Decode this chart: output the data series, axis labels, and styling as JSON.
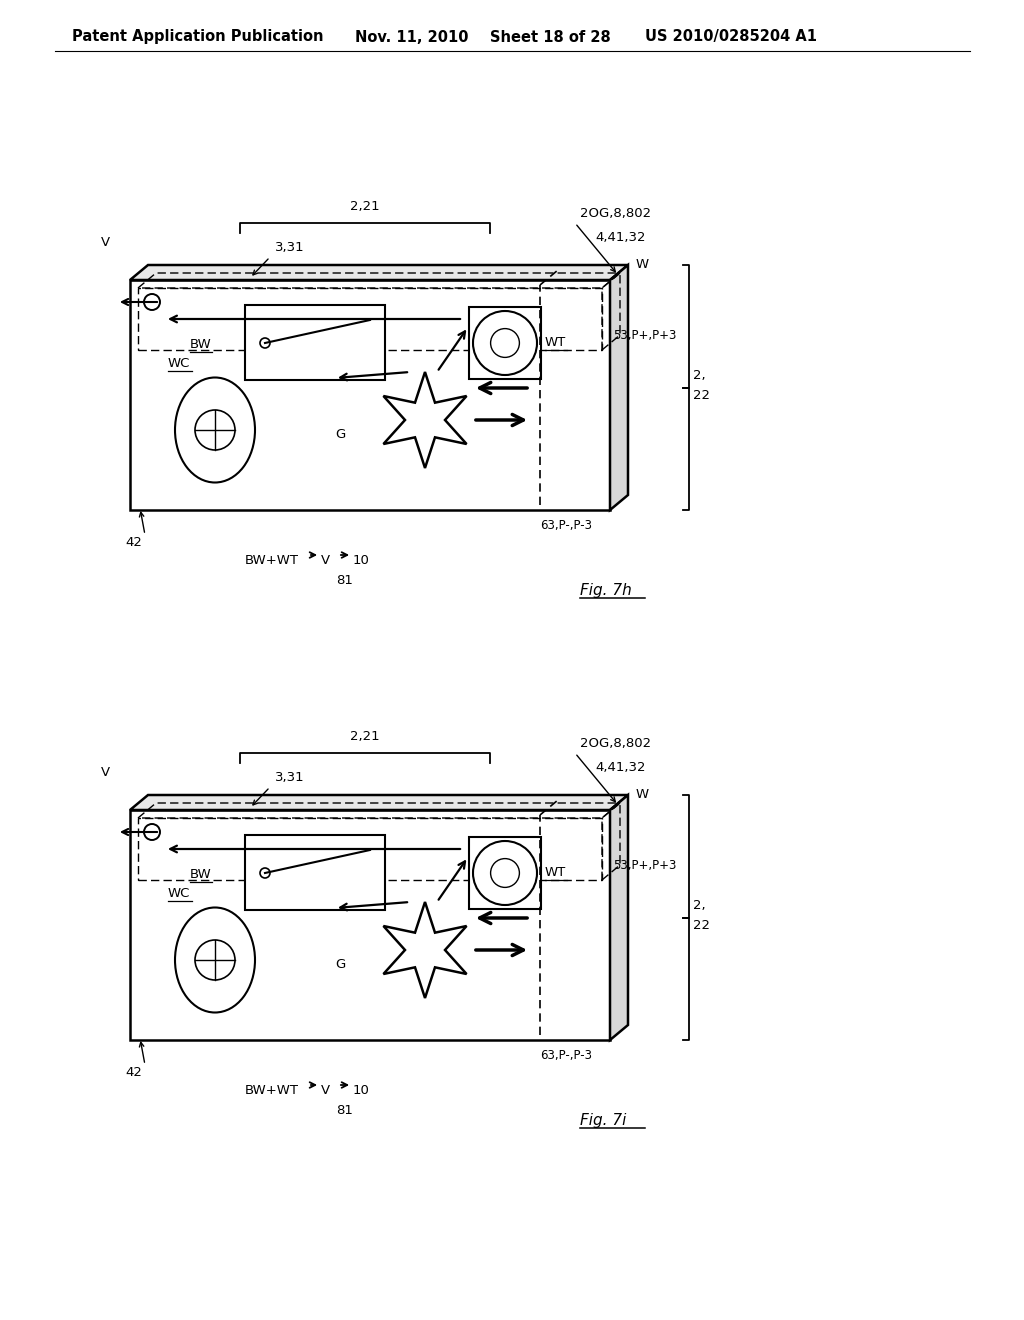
{
  "bg_color": "#ffffff",
  "header_text": "Patent Application Publication",
  "header_date": "Nov. 11, 2010",
  "header_sheet": "Sheet 18 of 28",
  "header_patent": "US 2010/0285204 A1",
  "fig7h_title": "Fig. 7h",
  "fig7i_title": "Fig. 7i"
}
